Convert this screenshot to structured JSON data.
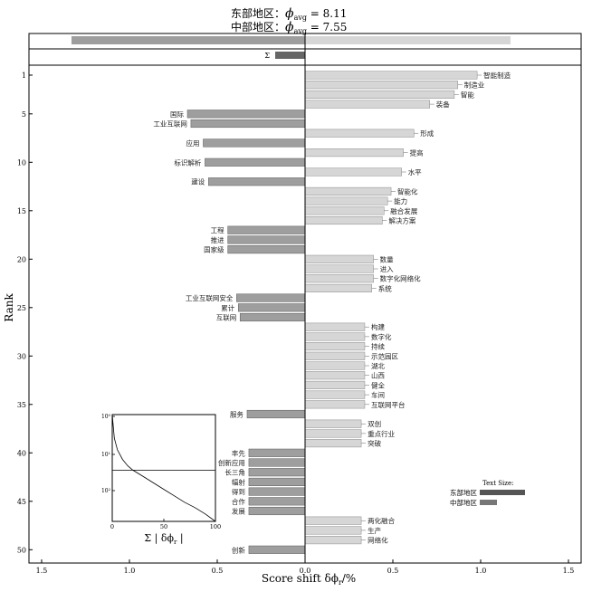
{
  "header": {
    "line1_label": "东部地区：",
    "line1_phi": "ϕ",
    "line1_sub": "avg",
    "line1_val": " = 8.11",
    "line2_label": "中部地区：",
    "line2_phi": "ϕ",
    "line2_sub": "avg",
    "line2_val": " = 7.55"
  },
  "colors": {
    "east": "#9e9e9e",
    "central": "#d6d6d6",
    "sum_bar": "#666666",
    "east_legend": "#555555",
    "central_legend": "#777777",
    "axis": "#000000"
  },
  "chart_data": {
    "type": "bar",
    "orientation": "horizontal",
    "xlabel": "Score shift δϕ",
    "xlabel_sub": "r",
    "xlabel_unit": "/%",
    "ylabel": "Rank",
    "xlim": [
      -1.5,
      1.5
    ],
    "x_ticks": [
      -1.5,
      -1.0,
      -0.5,
      0.0,
      0.5,
      1.0,
      1.5
    ],
    "x_tick_labels": [
      "1.5",
      "1.0",
      "0.5",
      "0.0",
      "0.5",
      "1.0",
      "1.5"
    ],
    "ylim": [
      0.5,
      50.5
    ],
    "y_ticks": [
      1,
      5,
      10,
      15,
      20,
      25,
      30,
      35,
      40,
      45,
      50
    ],
    "total_bar": {
      "east": -1.33,
      "central": 1.17
    },
    "sum_bar": {
      "label": "Σ",
      "value": -0.17
    },
    "bars": [
      {
        "rank": 1,
        "label": "智能制造",
        "value": 0.98
      },
      {
        "rank": 2,
        "label": "制造业",
        "value": 0.87
      },
      {
        "rank": 3,
        "label": "智能",
        "value": 0.85
      },
      {
        "rank": 4,
        "label": "装备",
        "value": 0.71
      },
      {
        "rank": 5,
        "label": "国际",
        "value": -0.67
      },
      {
        "rank": 6,
        "label": "工业互联网",
        "value": -0.65
      },
      {
        "rank": 7,
        "label": "形成",
        "value": 0.62
      },
      {
        "rank": 8,
        "label": "应用",
        "value": -0.58
      },
      {
        "rank": 9,
        "label": "提高",
        "value": 0.56
      },
      {
        "rank": 10,
        "label": "标识解析",
        "value": -0.57
      },
      {
        "rank": 11,
        "label": "水平",
        "value": 0.55
      },
      {
        "rank": 12,
        "label": "建设",
        "value": -0.55
      },
      {
        "rank": 13,
        "label": "智能化",
        "value": 0.49
      },
      {
        "rank": 14,
        "label": "能力",
        "value": 0.47
      },
      {
        "rank": 15,
        "label": "融合发展",
        "value": 0.45
      },
      {
        "rank": 16,
        "label": "解决方案",
        "value": 0.44
      },
      {
        "rank": 17,
        "label": "工程",
        "value": -0.44
      },
      {
        "rank": 18,
        "label": "推进",
        "value": -0.44
      },
      {
        "rank": 19,
        "label": "国家级",
        "value": -0.44
      },
      {
        "rank": 20,
        "label": "数量",
        "value": 0.39
      },
      {
        "rank": 21,
        "label": "进入",
        "value": 0.39
      },
      {
        "rank": 22,
        "label": "数字化网络化",
        "value": 0.39
      },
      {
        "rank": 23,
        "label": "系统",
        "value": 0.38
      },
      {
        "rank": 24,
        "label": "工业互联网安全",
        "value": -0.39
      },
      {
        "rank": 25,
        "label": "累计",
        "value": -0.38
      },
      {
        "rank": 26,
        "label": "互联网",
        "value": -0.37
      },
      {
        "rank": 27,
        "label": "构建",
        "value": 0.34
      },
      {
        "rank": 28,
        "label": "数字化",
        "value": 0.34
      },
      {
        "rank": 29,
        "label": "持续",
        "value": 0.34
      },
      {
        "rank": 30,
        "label": "示范园区",
        "value": 0.34
      },
      {
        "rank": 31,
        "label": "湖北",
        "value": 0.34
      },
      {
        "rank": 32,
        "label": "山西",
        "value": 0.34
      },
      {
        "rank": 33,
        "label": "健全",
        "value": 0.34
      },
      {
        "rank": 34,
        "label": "车间",
        "value": 0.34
      },
      {
        "rank": 35,
        "label": "互联网平台",
        "value": 0.34
      },
      {
        "rank": 36,
        "label": "服务",
        "value": -0.33
      },
      {
        "rank": 37,
        "label": "双创",
        "value": 0.32
      },
      {
        "rank": 38,
        "label": "重点行业",
        "value": 0.32
      },
      {
        "rank": 39,
        "label": "突破",
        "value": 0.32
      },
      {
        "rank": 40,
        "label": "率先",
        "value": -0.32
      },
      {
        "rank": 41,
        "label": "创新应用",
        "value": -0.32
      },
      {
        "rank": 42,
        "label": "长三角",
        "value": -0.32
      },
      {
        "rank": 43,
        "label": "辐射",
        "value": -0.32
      },
      {
        "rank": 44,
        "label": "得到",
        "value": -0.32
      },
      {
        "rank": 45,
        "label": "合作",
        "value": -0.32
      },
      {
        "rank": 46,
        "label": "发展",
        "value": -0.32
      },
      {
        "rank": 47,
        "label": "两化融合",
        "value": 0.32
      },
      {
        "rank": 48,
        "label": "生产",
        "value": 0.32
      },
      {
        "rank": 49,
        "label": "网络化",
        "value": 0.32
      },
      {
        "rank": 50,
        "label": "创新",
        "value": -0.32
      }
    ],
    "inset": {
      "type": "line",
      "xlabel": "Σ | δϕ",
      "xlabel_sub": "r",
      "xlabel_end": " |",
      "x_ticks": [
        0,
        50,
        100
      ],
      "y_ticks": [
        "10⁰",
        "10¹",
        "10²"
      ],
      "hline_fraction": 0.52,
      "curve": [
        [
          0,
          0.0
        ],
        [
          2,
          0.22
        ],
        [
          5,
          0.33
        ],
        [
          10,
          0.42
        ],
        [
          15,
          0.48
        ],
        [
          20,
          0.52
        ],
        [
          30,
          0.58
        ],
        [
          40,
          0.64
        ],
        [
          50,
          0.7
        ],
        [
          60,
          0.76
        ],
        [
          70,
          0.82
        ],
        [
          80,
          0.87
        ],
        [
          90,
          0.93
        ],
        [
          100,
          1.0
        ]
      ]
    },
    "legend": {
      "title": "Text Size:",
      "items": [
        {
          "name": "东部地区",
          "width_fraction": 1.0
        },
        {
          "name": "中部地区",
          "width_fraction": 0.38
        }
      ]
    }
  }
}
